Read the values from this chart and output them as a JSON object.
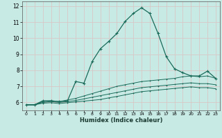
{
  "xlabel": "Humidex (Indice chaleur)",
  "background_color": "#c8eae5",
  "grid_color": "#d8c8c8",
  "line_color": "#1a6b5a",
  "xlim": [
    -0.5,
    23.5
  ],
  "ylim": [
    5.5,
    12.3
  ],
  "xticks": [
    0,
    1,
    2,
    3,
    4,
    5,
    6,
    7,
    8,
    9,
    10,
    11,
    12,
    13,
    14,
    15,
    16,
    17,
    18,
    19,
    20,
    21,
    22,
    23
  ],
  "yticks": [
    6,
    7,
    8,
    9,
    10,
    11,
    12
  ],
  "line1_x": [
    0,
    1,
    2,
    3,
    4,
    5,
    6,
    7,
    8,
    9,
    10,
    11,
    12,
    13,
    14,
    15,
    16,
    17,
    18,
    19,
    20,
    21,
    22,
    23
  ],
  "line1_y": [
    5.85,
    5.85,
    6.1,
    6.1,
    6.05,
    6.1,
    7.3,
    7.2,
    8.55,
    9.35,
    9.8,
    10.3,
    11.05,
    11.55,
    11.9,
    11.55,
    10.3,
    8.85,
    8.1,
    7.85,
    7.65,
    7.65,
    7.95,
    7.5
  ],
  "line2_x": [
    0,
    1,
    2,
    3,
    4,
    5,
    6,
    7,
    8,
    9,
    10,
    11,
    12,
    13,
    14,
    15,
    16,
    17,
    18,
    19,
    20,
    21,
    22,
    23
  ],
  "line2_y": [
    5.85,
    5.85,
    6.05,
    6.1,
    6.05,
    6.15,
    6.25,
    6.4,
    6.55,
    6.7,
    6.85,
    7.0,
    7.1,
    7.2,
    7.3,
    7.35,
    7.4,
    7.45,
    7.5,
    7.6,
    7.65,
    7.6,
    7.65,
    7.5
  ],
  "line3_x": [
    0,
    1,
    2,
    3,
    4,
    5,
    6,
    7,
    8,
    9,
    10,
    11,
    12,
    13,
    14,
    15,
    16,
    17,
    18,
    19,
    20,
    21,
    22,
    23
  ],
  "line3_y": [
    5.85,
    5.85,
    6.0,
    6.05,
    6.0,
    6.05,
    6.12,
    6.22,
    6.32,
    6.42,
    6.52,
    6.62,
    6.72,
    6.82,
    6.92,
    6.97,
    7.02,
    7.07,
    7.12,
    7.17,
    7.22,
    7.17,
    7.17,
    7.1
  ],
  "line4_x": [
    0,
    1,
    2,
    3,
    4,
    5,
    6,
    7,
    8,
    9,
    10,
    11,
    12,
    13,
    14,
    15,
    16,
    17,
    18,
    19,
    20,
    21,
    22,
    23
  ],
  "line4_y": [
    5.85,
    5.85,
    5.95,
    5.98,
    5.93,
    5.98,
    6.03,
    6.08,
    6.13,
    6.18,
    6.28,
    6.37,
    6.47,
    6.57,
    6.67,
    6.72,
    6.77,
    6.82,
    6.87,
    6.92,
    6.97,
    6.92,
    6.92,
    6.85
  ]
}
